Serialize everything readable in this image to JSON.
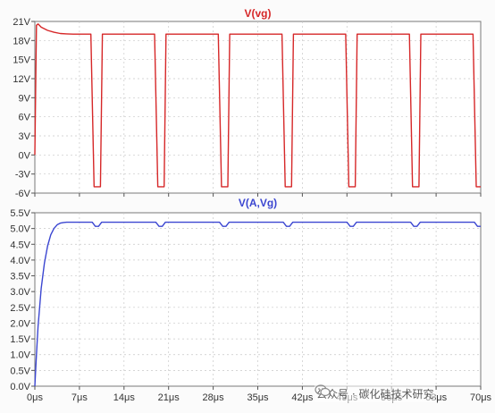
{
  "chart_data": [
    {
      "type": "line",
      "title": "V(vg)",
      "color": "#d62728",
      "ylim": [
        -6,
        21
      ],
      "y_ticks": [
        "21V",
        "18V",
        "15V",
        "12V",
        "9V",
        "6V",
        "3V",
        "0V",
        "-3V",
        "-6V"
      ],
      "y_tick_values": [
        21,
        18,
        15,
        12,
        9,
        6,
        3,
        0,
        -3,
        -6
      ],
      "x_unit": "μs",
      "xlim": [
        0,
        70
      ],
      "grid": true,
      "series": [
        {
          "x": [
            0,
            0.25,
            0.5,
            1,
            2,
            3,
            4,
            5,
            6,
            7,
            8.8,
            9.3,
            9.6,
            10.3,
            10.6,
            18.8,
            19.3,
            19.6,
            20.3,
            20.6,
            28.8,
            29.3,
            29.6,
            30.3,
            30.6,
            38.8,
            39.3,
            39.6,
            40.3,
            40.6,
            48.8,
            49.3,
            49.6,
            50.3,
            50.6,
            58.8,
            59.3,
            59.6,
            60.3,
            60.6,
            68.8,
            69.3,
            69.6,
            70
          ],
          "y": [
            0,
            20.4,
            20.6,
            20.1,
            19.6,
            19.3,
            19.1,
            19.05,
            19.0,
            19.0,
            19.0,
            -5,
            -5,
            -5,
            19,
            19.0,
            -5,
            -5,
            -5,
            19,
            19.0,
            -5,
            -5,
            -5,
            19,
            19.0,
            -5,
            -5,
            -5,
            19,
            19.0,
            -5,
            -5,
            -5,
            19,
            19.0,
            -5,
            -5,
            -5,
            19,
            19.0,
            -5,
            -5,
            -5
          ]
        }
      ]
    },
    {
      "type": "line",
      "title": "V(A,Vg)",
      "color": "#3b46d1",
      "ylim": [
        0,
        5.5
      ],
      "y_ticks": [
        "5.5V",
        "5.0V",
        "4.5V",
        "4.0V",
        "3.5V",
        "3.0V",
        "2.5V",
        "2.0V",
        "1.5V",
        "1.0V",
        "0.5V",
        "0.0V"
      ],
      "y_tick_values": [
        5.5,
        5.0,
        4.5,
        4.0,
        3.5,
        3.0,
        2.5,
        2.0,
        1.5,
        1.0,
        0.5,
        0.0
      ],
      "x_ticks": [
        "0μs",
        "7μs",
        "14μs",
        "21μs",
        "28μs",
        "35μs",
        "42μs",
        "49μs",
        "56μs",
        "63μs",
        "70μs"
      ],
      "x_tick_values": [
        0,
        7,
        14,
        21,
        28,
        35,
        42,
        49,
        56,
        63,
        70
      ],
      "xlim": [
        0,
        70
      ],
      "grid": true,
      "series": [
        {
          "x": [
            0,
            0.25,
            0.5,
            1,
            1.5,
            2,
            2.5,
            3,
            3.5,
            4,
            4.5,
            5,
            9.0,
            9.5,
            10.0,
            10.5,
            19.0,
            19.5,
            20.0,
            20.5,
            29.0,
            29.5,
            30.0,
            30.5,
            39.0,
            39.5,
            40.0,
            40.5,
            49.0,
            49.5,
            50.0,
            50.5,
            59.0,
            59.5,
            60.0,
            60.5,
            69.0,
            69.5,
            70
          ],
          "y": [
            0,
            1.0,
            1.9,
            3.1,
            3.9,
            4.45,
            4.8,
            5.0,
            5.12,
            5.17,
            5.19,
            5.2,
            5.2,
            5.07,
            5.07,
            5.2,
            5.2,
            5.07,
            5.07,
            5.2,
            5.2,
            5.07,
            5.07,
            5.2,
            5.2,
            5.07,
            5.07,
            5.2,
            5.2,
            5.07,
            5.07,
            5.2,
            5.2,
            5.07,
            5.07,
            5.2,
            5.2,
            5.07,
            5.07
          ]
        }
      ]
    }
  ],
  "watermark": {
    "text": "公众号 · 碳化硅技术研究",
    "icon": "wechat-icon"
  }
}
